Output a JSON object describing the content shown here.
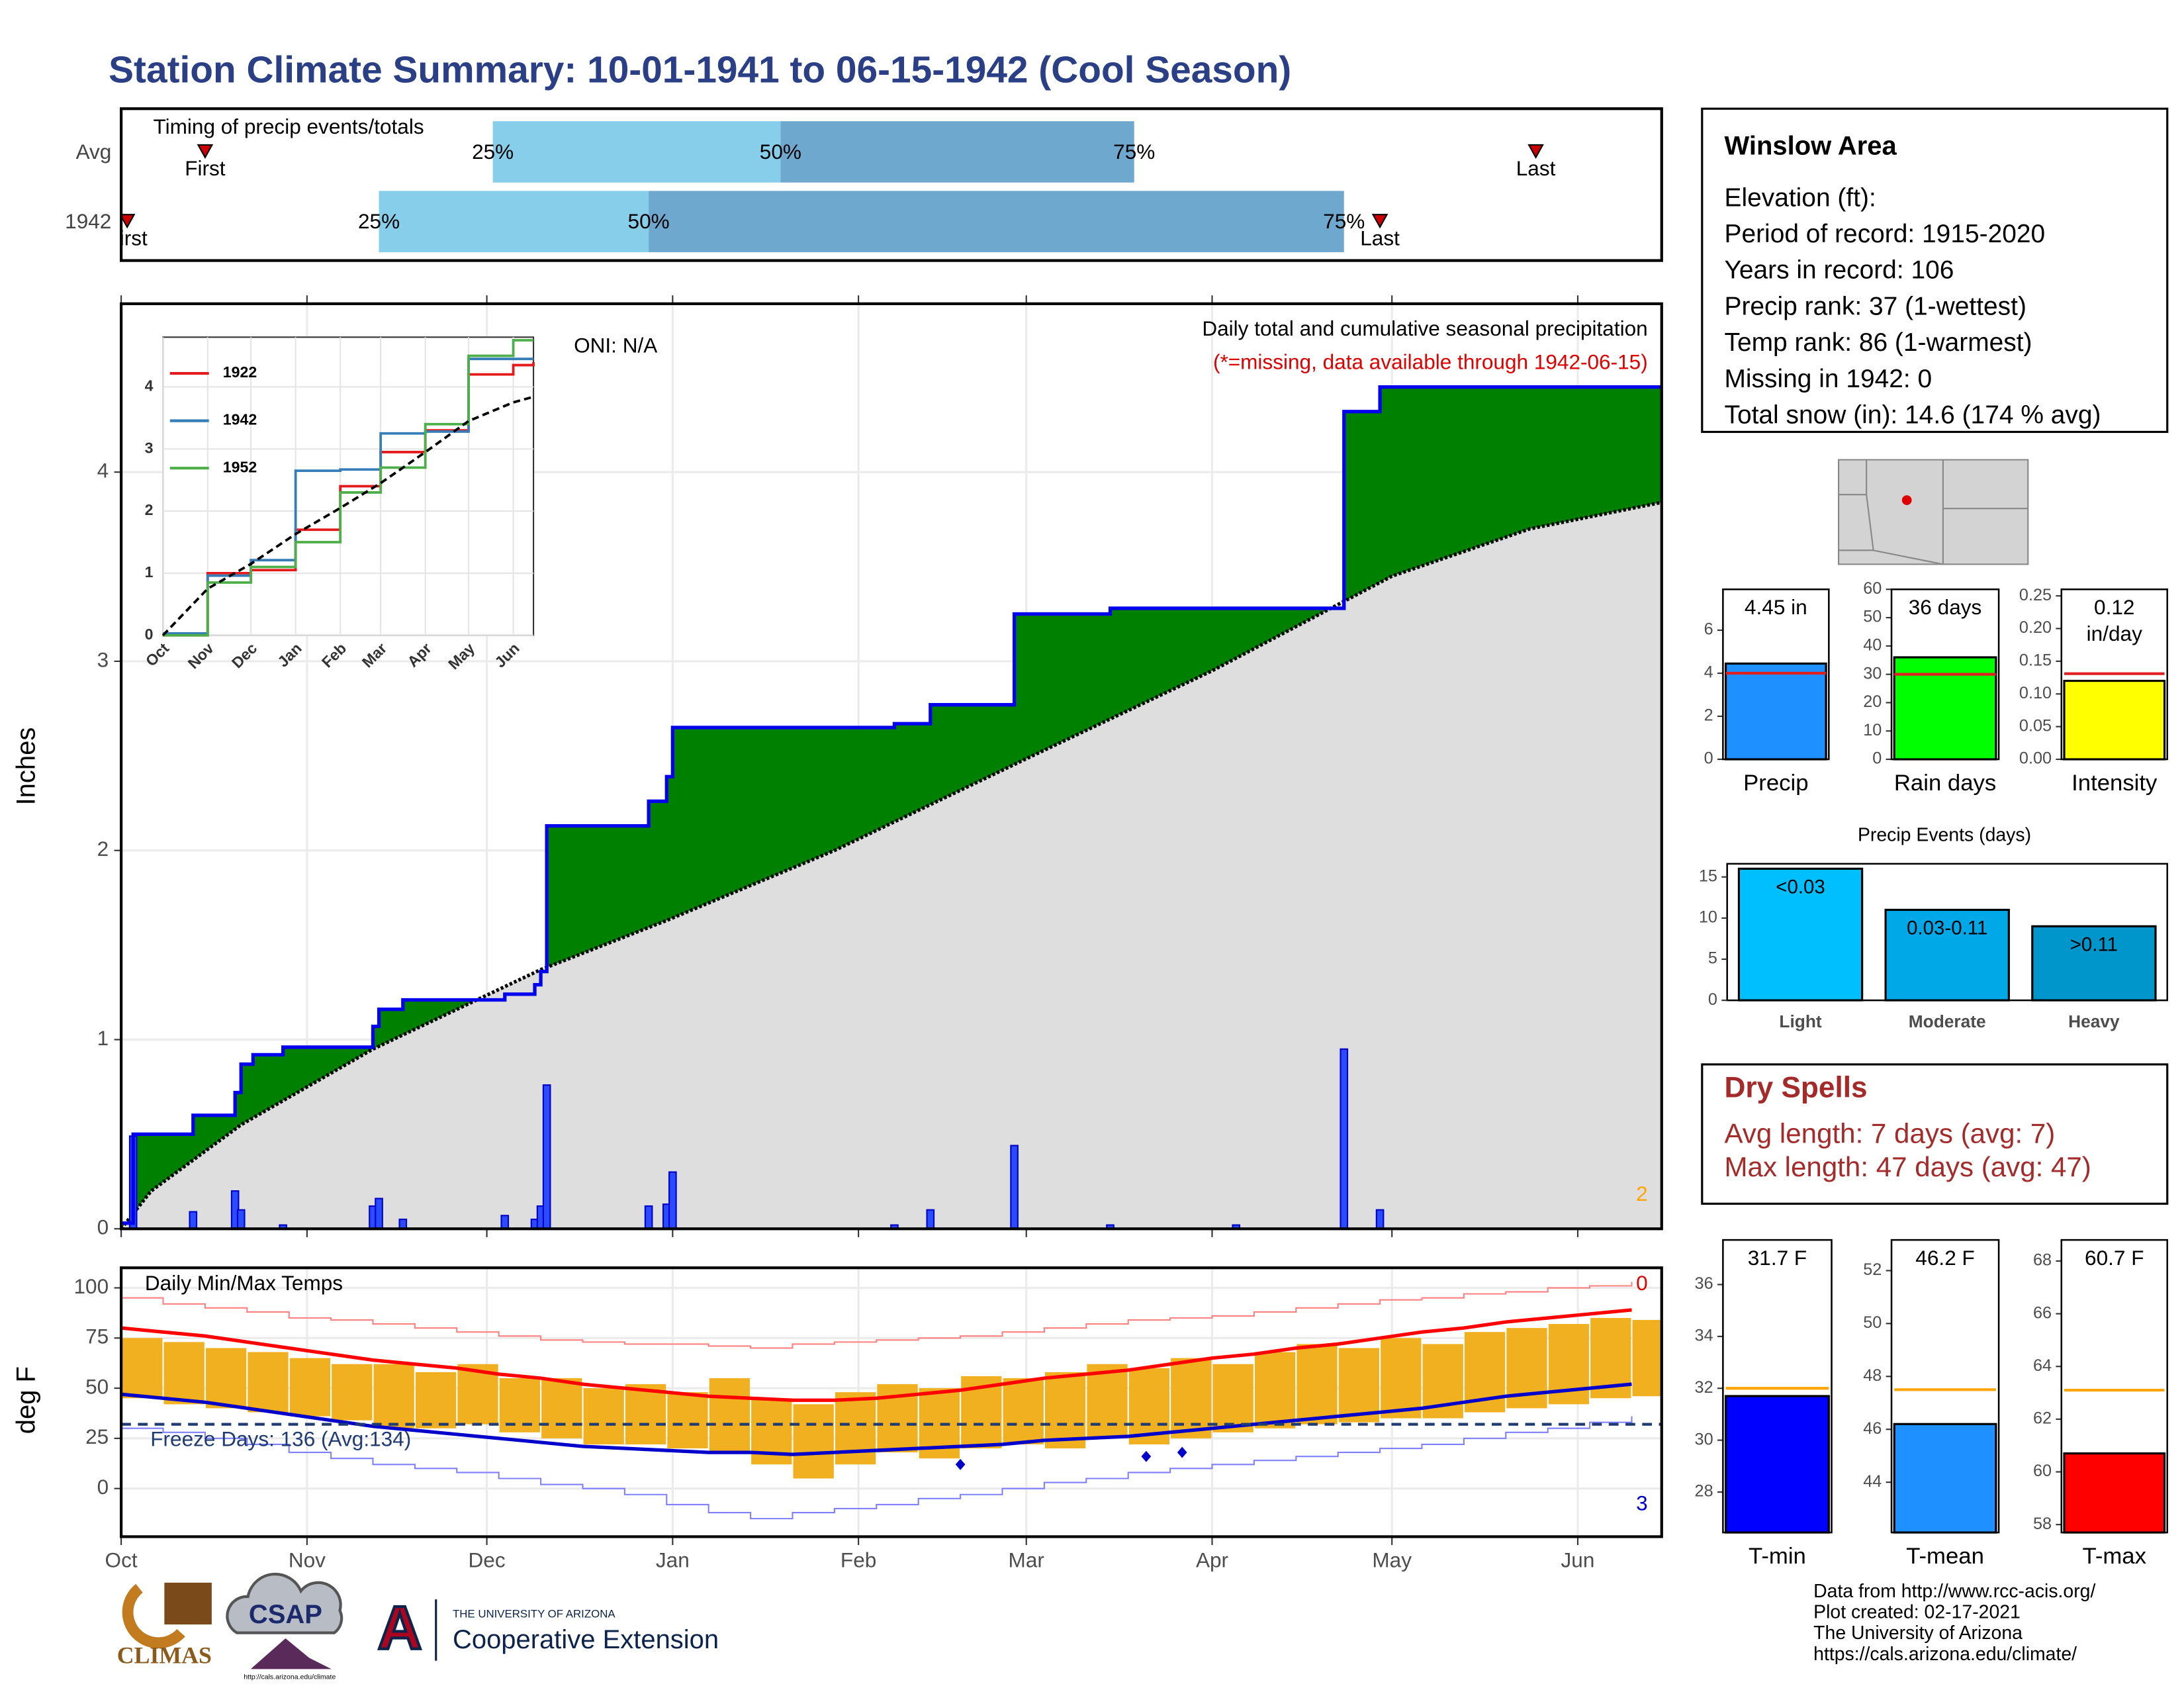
{
  "title": "Station Climate Summary: 10-01-1941 to 06-15-1942 (Cool Season)",
  "info_box": {
    "title": "Winslow Area",
    "lines": [
      "Elevation (ft):",
      "Period of record: 1915-2020",
      "Years in record: 106",
      "Precip rank: 37 (1-wettest)",
      "Temp rank: 86 (1-warmest)",
      "Missing in 1942: 0",
      "Total snow (in): 14.6 (174 % avg)"
    ]
  },
  "dry_spells": {
    "title": "Dry Spells",
    "lines": [
      "Avg length: 7 days (avg: 7)",
      "Max length: 47 days (avg: 47)"
    ]
  },
  "footer": {
    "lines": [
      "Data from http://www.rcc-acis.org/",
      "Plot created: 02-17-2021",
      "The University of Arizona",
      "https://cals.arizona.edu/climate/"
    ]
  },
  "logos": {
    "climas": "CLIMAS",
    "csap": "CSAP",
    "csap_url": "http://cals.arizona.edu/climate",
    "ua_mark": "A",
    "ua_line": "THE UNIVERSITY OF ARIZONA",
    "ua_unit": "Cooperative Extension"
  },
  "chart_data": [
    {
      "type": "timing",
      "title": "Timing of precip events/totals",
      "categories": [
        "Avg",
        "1942"
      ],
      "marker_labels": {
        "first": "First",
        "last": "Last"
      },
      "first": [
        14,
        1
      ],
      "last": [
        236,
        210
      ],
      "quantile_labels": [
        "25%",
        "50%",
        "75%"
      ],
      "quantiles": [
        [
          62,
          110,
          169
        ],
        [
          43,
          88,
          204
        ]
      ],
      "colors": [
        "#87ceeb",
        "#6fa8cf"
      ],
      "marker_color": "#cc0000",
      "xlim": [
        0,
        257
      ]
    },
    {
      "type": "cumulative_precip",
      "title": "Daily total and cumulative seasonal precipitation",
      "subtitle": "(*=missing, data available through 1942-06-15)",
      "annotation": "ONI: N/A",
      "corner_count": 2,
      "ylabel": "Inches",
      "xlim": [
        0,
        257
      ],
      "ylim": [
        0,
        4.89
      ],
      "yticks": [
        0,
        1,
        2,
        3,
        4
      ],
      "xticks": [
        {
          "value": 0,
          "label": "Oct"
        },
        {
          "value": 31,
          "label": "Nov"
        },
        {
          "value": 61,
          "label": "Dec"
        },
        {
          "value": 92,
          "label": "Jan"
        },
        {
          "value": 123,
          "label": "Feb"
        },
        {
          "value": 151,
          "label": "Mar"
        },
        {
          "value": 182,
          "label": "Apr"
        },
        {
          "value": 212,
          "label": "May"
        },
        {
          "value": 243,
          "label": "Jun"
        }
      ],
      "grid": true,
      "cumulative": {
        "color": "#0000ee",
        "fill": "#008000",
        "x": [
          0,
          2,
          12,
          19,
          20,
          22,
          27,
          42,
          43,
          47,
          64,
          69,
          70,
          71,
          88,
          91,
          92,
          129,
          135,
          149,
          165,
          204,
          210,
          257
        ],
        "values": [
          0.03,
          0.5,
          0.6,
          0.72,
          0.87,
          0.92,
          0.96,
          1.07,
          1.16,
          1.21,
          1.24,
          1.29,
          1.36,
          2.13,
          2.26,
          2.39,
          2.65,
          2.67,
          2.77,
          3.25,
          3.28,
          4.32,
          4.45,
          4.45
        ]
      },
      "average": {
        "fill": "#dedede",
        "color": "#000000",
        "x": [
          0,
          5,
          20,
          42,
          70,
          91,
          119,
          152,
          182,
          203,
          212,
          235,
          257
        ],
        "values": [
          0,
          0.2,
          0.55,
          0.95,
          1.37,
          1.63,
          2.0,
          2.5,
          2.95,
          3.3,
          3.45,
          3.7,
          3.84
        ]
      },
      "daily": {
        "color": "#0000cc",
        "fill": "#2a4bff",
        "x": [
          2,
          12,
          19,
          20,
          27,
          42,
          43,
          47,
          64,
          69,
          70,
          71,
          88,
          91,
          92,
          129,
          135,
          149,
          165,
          186,
          204,
          210
        ],
        "values": [
          0.49,
          0.09,
          0.2,
          0.1,
          0.02,
          0.12,
          0.16,
          0.05,
          0.07,
          0.05,
          0.12,
          0.76,
          0.12,
          0.13,
          0.3,
          0.02,
          0.1,
          0.44,
          0.02,
          0.02,
          0.95,
          0.1
        ]
      }
    },
    {
      "type": "line",
      "xlim": [
        0,
        257
      ],
      "ylim": [
        0,
        4.8
      ],
      "yticks": [
        0,
        1,
        2,
        3,
        4
      ],
      "xticks": [
        {
          "value": 0,
          "label": "Oct"
        },
        {
          "value": 31,
          "label": "Nov"
        },
        {
          "value": 61,
          "label": "Dec"
        },
        {
          "value": 92,
          "label": "Jan"
        },
        {
          "value": 123,
          "label": "Feb"
        },
        {
          "value": 151,
          "label": "Mar"
        },
        {
          "value": 182,
          "label": "Apr"
        },
        {
          "value": 212,
          "label": "May"
        },
        {
          "value": 243,
          "label": "Jun"
        }
      ],
      "x": [
        0,
        31,
        61,
        92,
        123,
        151,
        182,
        212,
        243,
        257
      ],
      "series": [
        {
          "name": "1922",
          "color": "#e41a1c",
          "values": [
            0,
            1.0,
            1.05,
            1.7,
            2.4,
            2.95,
            3.3,
            4.2,
            4.35,
            4.4
          ]
        },
        {
          "name": "1942",
          "color": "#377eb8",
          "values": [
            0.03,
            0.96,
            1.21,
            2.65,
            2.67,
            3.25,
            3.28,
            4.45,
            4.45,
            4.45
          ]
        },
        {
          "name": "1952",
          "color": "#4daf4a",
          "values": [
            0,
            0.85,
            1.1,
            1.5,
            2.3,
            2.7,
            3.4,
            4.5,
            4.75,
            4.75
          ]
        }
      ],
      "average": {
        "color": "#000000",
        "values": [
          0,
          0.75,
          1.15,
          1.63,
          2.05,
          2.45,
          2.95,
          3.45,
          3.75,
          3.84
        ]
      }
    },
    {
      "type": "temperature",
      "title": "Daily Min/Max Temps",
      "annotation": "Freeze Days: 136 (Avg:134)",
      "ylabel": "deg F",
      "record_high_count": 0,
      "record_low_count": 3,
      "freeze": 32,
      "xlim": [
        0,
        257
      ],
      "ylim": [
        -24,
        110
      ],
      "yticks": [
        0,
        25,
        50,
        75,
        100
      ],
      "xticks": [
        {
          "value": 0,
          "label": "Oct"
        },
        {
          "value": 31,
          "label": "Nov"
        },
        {
          "value": 61,
          "label": "Dec"
        },
        {
          "value": 92,
          "label": "Jan"
        },
        {
          "value": 123,
          "label": "Feb"
        },
        {
          "value": 151,
          "label": "Mar"
        },
        {
          "value": 182,
          "label": "Apr"
        },
        {
          "value": 212,
          "label": "May"
        },
        {
          "value": 243,
          "label": "Jun"
        }
      ],
      "x": [
        0,
        7,
        14,
        21,
        28,
        35,
        42,
        49,
        56,
        63,
        70,
        77,
        84,
        91,
        98,
        105,
        112,
        119,
        126,
        133,
        140,
        147,
        154,
        161,
        168,
        175,
        182,
        189,
        196,
        203,
        210,
        217,
        224,
        231,
        238,
        245,
        252
      ],
      "tmax": {
        "color": "#f0b020",
        "values": [
          75,
          73,
          70,
          68,
          65,
          62,
          62,
          58,
          62,
          55,
          55,
          50,
          52,
          48,
          55,
          45,
          42,
          48,
          52,
          50,
          56,
          55,
          58,
          62,
          60,
          65,
          62,
          68,
          72,
          70,
          75,
          72,
          78,
          80,
          82,
          85,
          84
        ]
      },
      "tmin": {
        "color": "#f0b020",
        "values": [
          45,
          42,
          40,
          38,
          36,
          34,
          30,
          30,
          32,
          28,
          25,
          22,
          22,
          20,
          18,
          12,
          5,
          12,
          18,
          15,
          20,
          22,
          20,
          25,
          22,
          25,
          28,
          30,
          32,
          33,
          35,
          35,
          38,
          40,
          42,
          45,
          46
        ]
      },
      "avg_max": {
        "color": "#ff0000",
        "values": [
          80,
          78,
          76,
          73,
          70,
          67,
          64,
          62,
          60,
          57,
          55,
          52,
          50,
          48,
          46,
          45,
          44,
          44,
          45,
          47,
          49,
          52,
          55,
          57,
          59,
          62,
          65,
          67,
          70,
          72,
          75,
          78,
          80,
          83,
          85,
          87,
          89
        ]
      },
      "avg_min": {
        "color": "#0000cc",
        "values": [
          47,
          45,
          43,
          40,
          37,
          34,
          31,
          29,
          27,
          25,
          23,
          21,
          20,
          19,
          18,
          18,
          17,
          18,
          19,
          20,
          21,
          22,
          24,
          25,
          26,
          28,
          30,
          32,
          34,
          36,
          38,
          40,
          43,
          46,
          48,
          50,
          52
        ]
      },
      "record_max": {
        "color": "#ff8080",
        "values": [
          95,
          92,
          90,
          88,
          85,
          84,
          82,
          80,
          78,
          76,
          74,
          73,
          72,
          72,
          71,
          70,
          72,
          73,
          74,
          75,
          76,
          78,
          80,
          82,
          84,
          85,
          86,
          88,
          90,
          92,
          94,
          95,
          97,
          98,
          100,
          101,
          103
        ]
      },
      "record_min": {
        "color": "#8080ff",
        "values": [
          30,
          28,
          25,
          22,
          18,
          15,
          12,
          10,
          8,
          5,
          2,
          0,
          -3,
          -8,
          -12,
          -15,
          -12,
          -10,
          -8,
          -5,
          -3,
          0,
          3,
          5,
          8,
          10,
          12,
          14,
          16,
          18,
          20,
          22,
          25,
          28,
          30,
          33,
          36
        ]
      },
      "freeze_color": "#1f3b73",
      "record_lows": {
        "color": "#0000cc",
        "x": [
          140,
          171,
          177
        ],
        "values": [
          12,
          16,
          18
        ]
      }
    },
    {
      "type": "summary_bar",
      "name": "Precip",
      "values": [
        4.45
      ],
      "value_labels": [
        "4.45 in"
      ],
      "average": 4.0,
      "color": "#1e90ff",
      "avg_color": "#e02020",
      "ylim": [
        0,
        7.9
      ],
      "yticks": [
        0,
        2,
        4,
        6
      ]
    },
    {
      "type": "summary_bar",
      "name": "Rain days",
      "values": [
        36
      ],
      "value_labels": [
        "36 days"
      ],
      "average": 30,
      "color": "#00ff00",
      "avg_color": "#e02020",
      "ylim": [
        0,
        60
      ],
      "yticks": [
        0,
        10,
        20,
        30,
        40,
        50,
        60
      ]
    },
    {
      "type": "summary_bar",
      "name": "Intensity",
      "values": [
        0.12
      ],
      "value_labels": [
        "0.12 in/day"
      ],
      "average": 0.131,
      "color": "#ffff00",
      "avg_color": "#e02020",
      "ylim": [
        0,
        0.26
      ],
      "yticks": [
        {
          "value": 0,
          "label": "0.00"
        },
        0.05,
        {
          "value": 0.1,
          "label": "0.10"
        },
        0.15,
        {
          "value": 0.2,
          "label": "0.20"
        },
        0.25
      ]
    },
    {
      "type": "bar",
      "title": "Precip Events (days)",
      "categories": [
        "Light",
        "Moderate",
        "Heavy"
      ],
      "values": [
        16,
        11,
        9
      ],
      "bin_labels": [
        "<0.03",
        "0.03-0.11",
        ">0.11"
      ],
      "colors": [
        "#00bfff",
        "#00a8e8",
        "#0096cc"
      ],
      "ylim": [
        0,
        16.6
      ],
      "yticks": [
        0,
        5,
        10,
        15
      ]
    },
    {
      "type": "summary_bar",
      "name": "T-min",
      "values": [
        31.7
      ],
      "value_labels": [
        "31.7 F"
      ],
      "average": 32.0,
      "color": "#0000ff",
      "avg_color": "#ffa500",
      "ylim": [
        26.44,
        37.72
      ],
      "yticks": [
        28,
        30,
        32,
        34,
        36
      ]
    },
    {
      "type": "summary_bar",
      "name": "T-mean",
      "values": [
        46.2
      ],
      "value_labels": [
        "46.2 F"
      ],
      "average": 47.5,
      "color": "#1e90ff",
      "avg_color": "#ffa500",
      "ylim": [
        42.1,
        53.16
      ],
      "yticks": [
        44,
        46,
        48,
        50,
        52
      ]
    },
    {
      "type": "summary_bar",
      "name": "T-max",
      "values": [
        60.7
      ],
      "value_labels": [
        "60.7 F"
      ],
      "average": 63.1,
      "color": "#ff0000",
      "avg_color": "#ffa500",
      "ylim": [
        57.7,
        68.8
      ],
      "yticks": [
        58,
        60,
        62,
        64,
        66,
        68
      ]
    }
  ]
}
